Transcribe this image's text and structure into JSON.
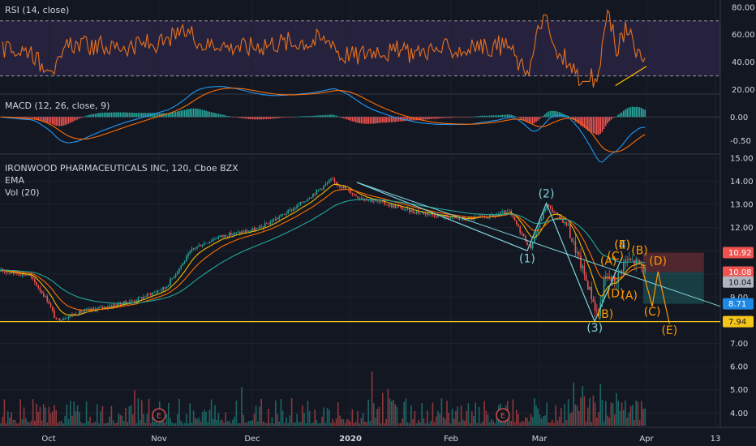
{
  "chart_data": [
    {
      "type": "line",
      "title": "RSI (14, close)",
      "ylim": [
        18,
        84
      ],
      "y_ticks": [
        "80.00",
        "60.00",
        "40.00",
        "20.00"
      ],
      "bands": [
        70,
        30
      ],
      "colors": {
        "line": "#e8711c",
        "band_fill": "#7e57c2",
        "trend": "#f5b800"
      },
      "trendline": {
        "from": [
          "Mar 23",
          23
        ],
        "to": [
          "Apr 1",
          37
        ]
      }
    },
    {
      "type": "line",
      "title": "MACD (12, 26, close, 9)",
      "ylim": [
        -0.75,
        0.45
      ],
      "y_ticks": [
        "0.00",
        "-0.50"
      ],
      "colors": {
        "macd": "#2196f3",
        "signal": "#ff6d00",
        "hist_up": "#26a69a",
        "hist_down": "#ef5350"
      }
    },
    {
      "type": "candlestick",
      "title": "IRONWOOD PHARMACEUTICALS INC, 120, Cboe BZX",
      "indicators": [
        "EMA",
        "Vol (20)"
      ],
      "ylim": [
        3.45,
        15.1
      ],
      "y_ticks": [
        "15.00",
        "14.00",
        "13.00",
        "12.00",
        "11.00",
        "10.00",
        "9.00",
        "8.00",
        "7.00",
        "6.00",
        "5.00",
        "4.00"
      ],
      "x_ticks": [
        "Oct",
        "Nov",
        "Dec",
        "2020",
        "Feb",
        "Mar",
        "Apr",
        "13"
      ],
      "price_key_points": [
        [
          "Sep 17",
          10.1
        ],
        [
          "Sep 25",
          9.95
        ],
        [
          "Oct 1",
          8.8
        ],
        [
          "Oct 3",
          8.0
        ],
        [
          "Oct 10",
          8.35
        ],
        [
          "Oct 25",
          8.85
        ],
        [
          "Nov 3",
          9.4
        ],
        [
          "Nov 12",
          11.1
        ],
        [
          "Nov 20",
          11.6
        ],
        [
          "Dec 3",
          11.95
        ],
        [
          "Dec 15",
          12.9
        ],
        [
          "Dec 26",
          14.05
        ],
        [
          "Jan 3",
          13.35
        ],
        [
          "Jan 20",
          12.7
        ],
        [
          "Feb 5",
          12.35
        ],
        [
          "Feb 15",
          12.5
        ],
        [
          "Feb 20",
          12.7
        ],
        [
          "Feb 27",
          11.1
        ],
        [
          "Mar 3",
          13.0
        ],
        [
          "Mar 9",
          12.1
        ],
        [
          "Mar 16",
          9.1
        ],
        [
          "Mar 18",
          8.15
        ],
        [
          "Mar 20",
          9.85
        ],
        [
          "Mar 23",
          9.7
        ],
        [
          "Mar 26",
          10.6
        ],
        [
          "Mar 30",
          10.45
        ],
        [
          "Apr 1",
          10.05
        ]
      ],
      "volume_ylim": [
        3.5,
        7.2
      ],
      "wave_labels_cyan": [
        {
          "text": "(1)",
          "x": "Feb 26",
          "y": 10.5
        },
        {
          "text": "(2)",
          "x": "Mar 3",
          "y": 13.3
        },
        {
          "text": "(3)",
          "x": "Mar 17",
          "y": 7.5
        },
        {
          "text": "(4)",
          "x": "Mar 25",
          "y": 11.1
        }
      ],
      "wave_labels_orange": [
        {
          "text": "(A)",
          "x": "Mar 21",
          "y": 10.4
        },
        {
          "text": "(B)",
          "x": "Mar 20",
          "y": 8.1
        },
        {
          "text": "(C)",
          "x": "Mar 23",
          "y": 10.6
        },
        {
          "text": "(D)",
          "x": "Mar 23",
          "y": 9.0
        },
        {
          "text": "(E)",
          "x": "Mar 25",
          "y": 11.1
        },
        {
          "text": "(A)",
          "x": "Mar 27",
          "y": 8.9
        },
        {
          "text": "(B)",
          "x": "Mar 30",
          "y": 10.85
        },
        {
          "text": "(D)",
          "x": "Apr 3",
          "y": 10.4
        },
        {
          "text": "(C)",
          "x": "Apr 2",
          "y": 8.2
        },
        {
          "text": "(E)",
          "x": "Apr 5",
          "y": 7.4
        }
      ],
      "projection": [
        [
          "Mar 31",
          10.1
        ],
        [
          "Apr 2",
          8.6
        ],
        [
          "Apr 3",
          10.1
        ],
        [
          "Apr 5",
          7.85
        ]
      ],
      "wave_path": [
        [
          "Jan 3",
          13.95
        ],
        [
          "Feb 26",
          11.0
        ],
        [
          "Mar 3",
          13.05
        ],
        [
          "Mar 17",
          7.95
        ],
        [
          "Mar 25",
          10.75
        ]
      ],
      "horizontal_line": {
        "value": 7.94,
        "color": "#f5c518"
      },
      "reward_zone": {
        "x_from": "Mar 31",
        "x_to": "Apr 11",
        "top": 10.92,
        "entry": 10.08,
        "stop": 8.71
      },
      "price_tags": [
        {
          "label": "10.92",
          "value": 10.92,
          "bg": "#ef5350",
          "fg": "#ffffff"
        },
        {
          "label": "10.08",
          "value": 10.08,
          "bg": "#ef5350",
          "fg": "#ffffff"
        },
        {
          "label": "10.04",
          "value": 9.65,
          "bg": "#b2b5be",
          "fg": "#131722"
        },
        {
          "label": "8.71",
          "value": 8.71,
          "bg": "#1e88e5",
          "fg": "#ffffff"
        },
        {
          "label": "7.94",
          "value": 7.94,
          "bg": "#f5c518",
          "fg": "#131722"
        }
      ],
      "earnings_markers": [
        {
          "label": "E",
          "x": "Nov 1"
        },
        {
          "label": "E",
          "x": "Feb 18"
        }
      ],
      "colors": {
        "up": "#26a69a",
        "down": "#ef5350",
        "ema_fast": "#f5b800",
        "ema_mid": "#ff6d00",
        "ema_slow": "#26a69a",
        "wave_cyan": "#7fd3d8",
        "wave_orange": "#ff9800"
      }
    }
  ]
}
